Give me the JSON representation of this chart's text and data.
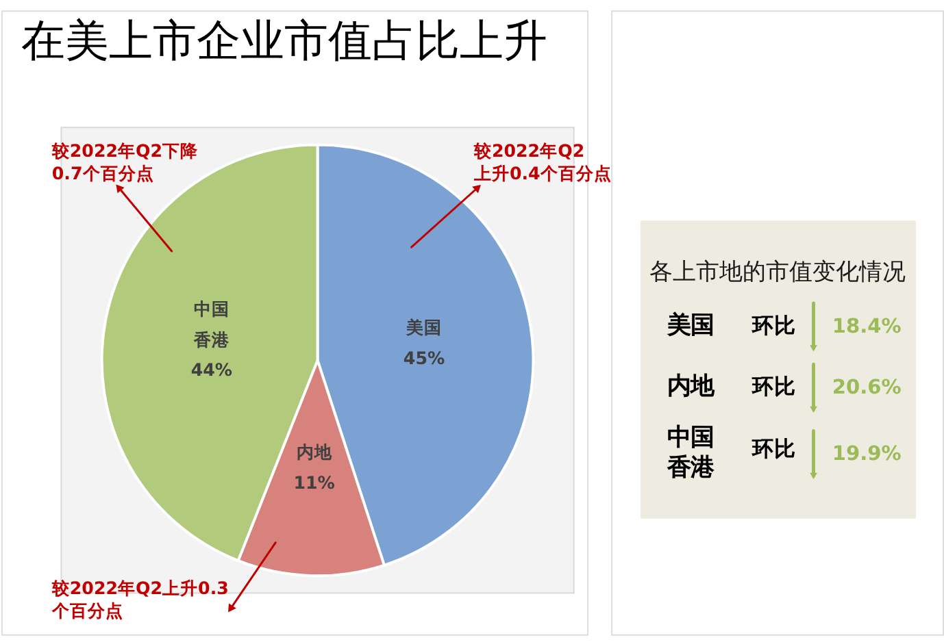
{
  "chart_data": [
    {
      "type": "pie",
      "title": "在美上市企业市值占比上升",
      "categories": [
        "美国",
        "内地",
        "中国香港"
      ],
      "values": [
        45,
        11,
        44
      ],
      "value_labels": [
        "45%",
        "11%",
        "44%"
      ],
      "colors": [
        "#7ba2d2",
        "#d8827e",
        "#b2ca7c"
      ],
      "annotations": [
        "较2022年Q2下降0.7个百分点",
        "较2022年Q2上升0.4个百分点",
        "较2022年Q2上升0.3个百分点"
      ]
    },
    {
      "type": "other",
      "title": "各上市地的市值变化情况",
      "categories": [
        "美国",
        "内地",
        "中国香港"
      ],
      "value_labels": [
        "18.4%",
        "20.6%",
        "19.9%"
      ],
      "annotations": [
        "环比",
        "环比",
        "环比"
      ],
      "color": "#9bbb59"
    }
  ]
}
